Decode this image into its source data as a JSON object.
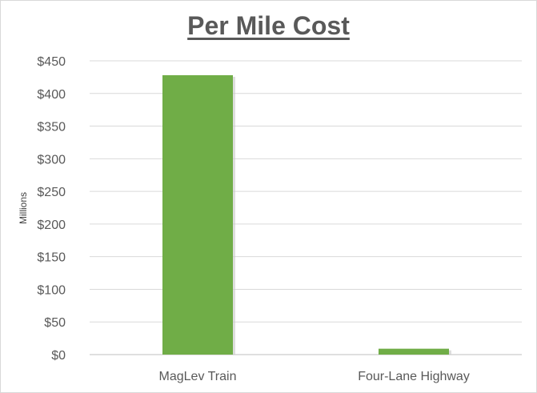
{
  "chart_data": {
    "type": "bar",
    "title": "Per Mile Cost",
    "categories": [
      "MagLev Train",
      "Four-Lane Highway"
    ],
    "values": [
      428,
      9
    ],
    "ylabel": "Millions",
    "xlabel": "",
    "ylim": [
      0,
      450
    ],
    "yticks": [
      "$0",
      "$50",
      "$100",
      "$150",
      "$200",
      "$250",
      "$300",
      "$350",
      "$400",
      "$450"
    ],
    "grid": true,
    "bar_color": "#70ad47"
  }
}
